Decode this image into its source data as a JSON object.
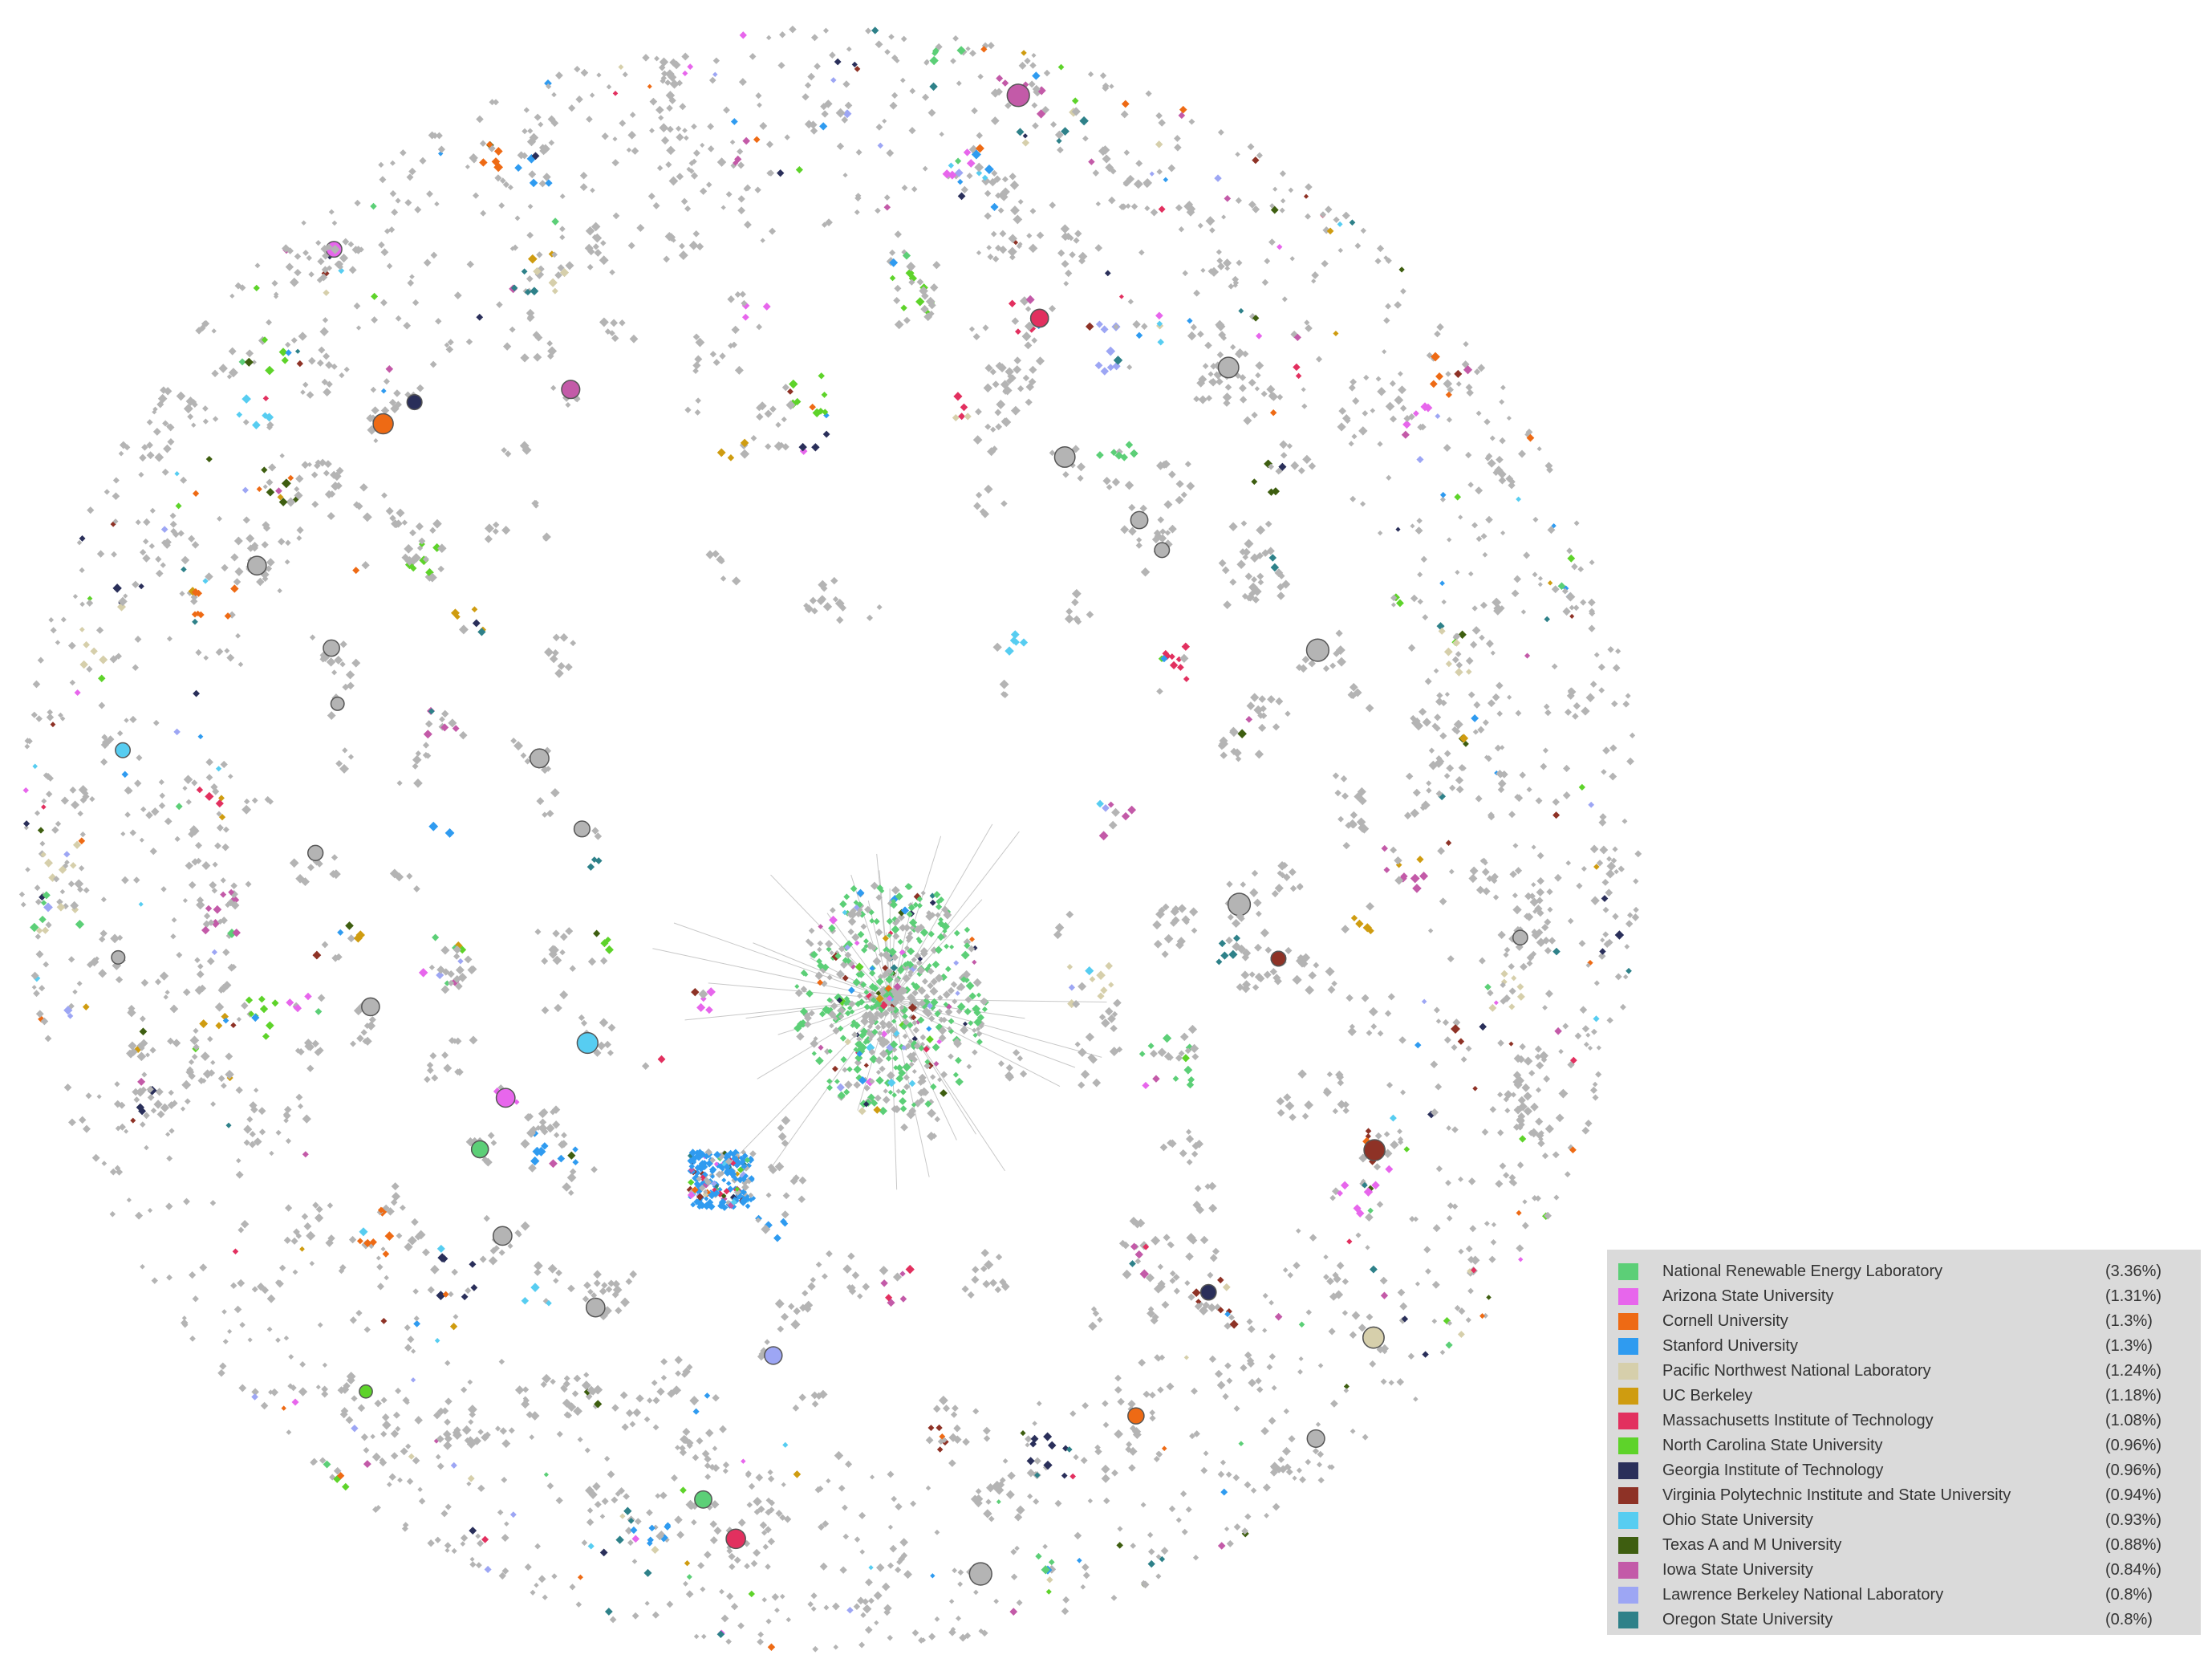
{
  "default_node_color": "#b4b4b4",
  "legend": {
    "items": [
      {
        "label": "National Renewable Energy Laboratory",
        "percent": "(3.36%)",
        "color": "#5ccf77"
      },
      {
        "label": "Arizona State University",
        "percent": "(1.31%)",
        "color": "#e766ec"
      },
      {
        "label": "Cornell University",
        "percent": "(1.3%)",
        "color": "#ee6a14"
      },
      {
        "label": "Stanford University",
        "percent": "(1.3%)",
        "color": "#2f9bf0"
      },
      {
        "label": "Pacific Northwest National Laboratory",
        "percent": "(1.24%)",
        "color": "#d6cfab"
      },
      {
        "label": "UC Berkeley",
        "percent": "(1.18%)",
        "color": "#cf9c10"
      },
      {
        "label": "Massachusetts Institute of Technology",
        "percent": "(1.08%)",
        "color": "#e2305f"
      },
      {
        "label": "North Carolina State University",
        "percent": "(0.96%)",
        "color": "#5ed32a"
      },
      {
        "label": "Georgia Institute of Technology",
        "percent": "(0.96%)",
        "color": "#2a2f5a"
      },
      {
        "label": "Virginia Polytechnic Institute and State University",
        "percent": "(0.94%)",
        "color": "#8e3226"
      },
      {
        "label": "Ohio State University",
        "percent": "(0.93%)",
        "color": "#57cdf1"
      },
      {
        "label": "Texas A and M University",
        "percent": "(0.88%)",
        "color": "#3e5e10"
      },
      {
        "label": "Iowa State University",
        "percent": "(0.84%)",
        "color": "#c35aa8"
      },
      {
        "label": "Lawrence Berkeley National Laboratory",
        "percent": "(0.8%)",
        "color": "#9da6f4"
      },
      {
        "label": "Oregon State University",
        "percent": "(0.8%)",
        "color": "#2e8189"
      }
    ]
  }
}
